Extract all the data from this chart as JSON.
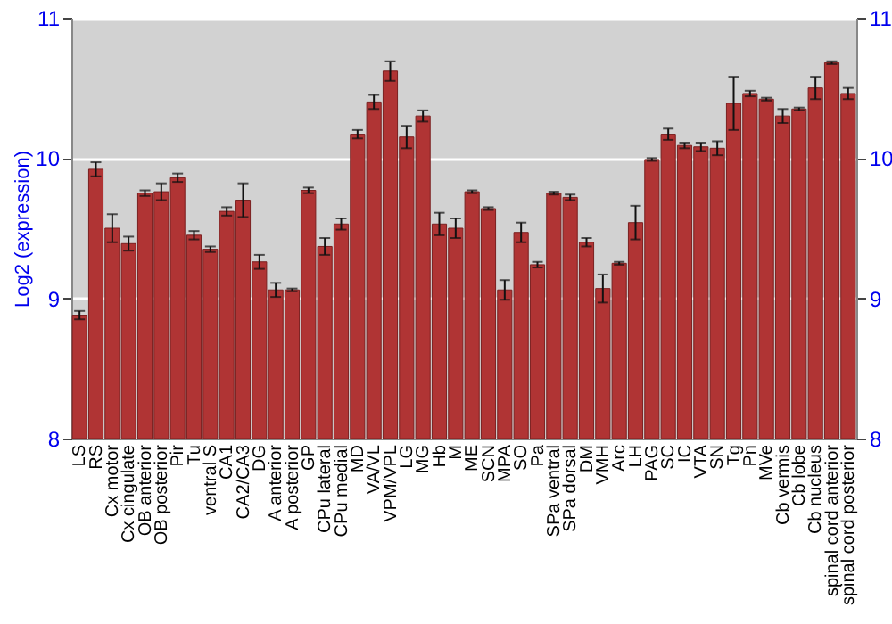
{
  "chart_data": {
    "type": "bar",
    "ylabel": "Log2 (expression)",
    "categories": [
      "LS",
      "RS",
      "Cx motor",
      "Cx cingulate",
      "OB anterior",
      "OB posterior",
      "Pir",
      "Tu",
      "ventral S",
      "CA1",
      "CA2/CA3",
      "DG",
      "A anterior",
      "A posterior",
      "GP",
      "CPu lateral",
      "CPu medial",
      "MD",
      "VA/VL",
      "VPM/VPL",
      "LG",
      "MG",
      "Hb",
      "M",
      "ME",
      "SCN",
      "MPA",
      "SO",
      "Pa",
      "SPa ventral",
      "SPa dorsal",
      "DM",
      "VMH",
      "Arc",
      "LH",
      "PAG",
      "SC",
      "IC",
      "VTA",
      "SN",
      "Tg",
      "Pn",
      "MVe",
      "Cb vermis",
      "Cb lobe",
      "Cb nucleus",
      "spinal cord anterior",
      "spinal cord posterior"
    ],
    "values": [
      8.88,
      9.92,
      9.5,
      9.39,
      9.75,
      9.76,
      9.86,
      9.45,
      9.35,
      9.62,
      9.7,
      9.26,
      9.06,
      9.06,
      9.77,
      9.37,
      9.53,
      10.17,
      10.4,
      10.62,
      10.15,
      10.3,
      9.53,
      9.5,
      9.76,
      9.64,
      9.06,
      9.47,
      9.24,
      9.75,
      9.72,
      9.4,
      9.07,
      9.25,
      9.54,
      9.99,
      10.17,
      10.09,
      10.08,
      10.07,
      10.39,
      10.46,
      10.42,
      10.3,
      10.35,
      10.5,
      10.68,
      10.46
    ],
    "errors": [
      0.03,
      0.05,
      0.1,
      0.05,
      0.02,
      0.06,
      0.03,
      0.03,
      0.02,
      0.03,
      0.12,
      0.05,
      0.05,
      0.01,
      0.02,
      0.06,
      0.04,
      0.03,
      0.05,
      0.07,
      0.08,
      0.04,
      0.08,
      0.07,
      0.01,
      0.01,
      0.07,
      0.07,
      0.02,
      0.01,
      0.02,
      0.03,
      0.1,
      0.01,
      0.12,
      0.01,
      0.04,
      0.02,
      0.03,
      0.05,
      0.19,
      0.02,
      0.01,
      0.05,
      0.01,
      0.08,
      0.01,
      0.04
    ],
    "color": "#b03434",
    "ylim": [
      8,
      11
    ],
    "yticks": [
      8,
      9,
      10,
      11
    ],
    "y2lim": [
      8,
      11
    ],
    "y2ticks": [
      8,
      9,
      10,
      11
    ],
    "grid": "y"
  }
}
